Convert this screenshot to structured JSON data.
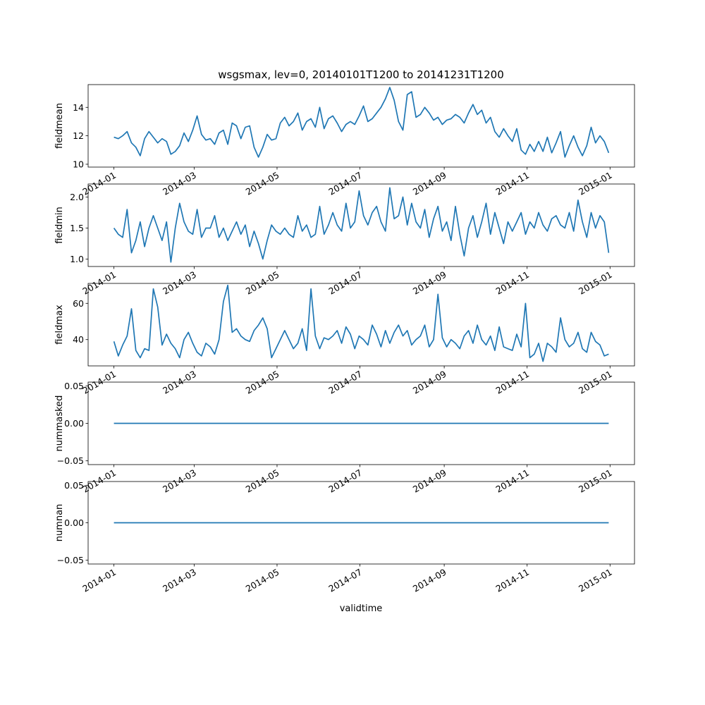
{
  "title": "wsgsmax, lev=0, 20140101T1200 to 20141231T1200",
  "xlabel": "validtime",
  "x_ticks": [
    "2014-01",
    "2014-03",
    "2014-05",
    "2014-07",
    "2014-09",
    "2014-11",
    "2015-01"
  ],
  "x_tick_dates": [
    "2014-01-01",
    "2014-03-01",
    "2014-05-01",
    "2014-07-01",
    "2014-09-01",
    "2014-11-01",
    "2015-01-01"
  ],
  "line_color": "#1f77b4",
  "chart_data": [
    {
      "type": "line",
      "ylabel": "fieldmean",
      "xlim": [
        "2013-12-13",
        "2015-01-19"
      ],
      "ylim": [
        9.8,
        15.6
      ],
      "y_ticks": [
        10,
        12,
        14
      ],
      "x_start": "2014-01-01",
      "x_end": "2014-12-31",
      "x_step_days": 4,
      "values": [
        11.9,
        11.8,
        12.0,
        12.3,
        11.5,
        11.2,
        10.6,
        11.8,
        12.3,
        11.9,
        11.5,
        11.8,
        11.6,
        10.7,
        10.9,
        11.3,
        12.2,
        11.6,
        12.4,
        13.4,
        12.1,
        11.7,
        11.8,
        11.4,
        12.2,
        12.4,
        11.4,
        12.9,
        12.7,
        11.8,
        12.6,
        12.7,
        11.2,
        10.5,
        11.2,
        12.1,
        11.7,
        11.8,
        12.9,
        13.3,
        12.7,
        13.0,
        13.6,
        12.4,
        13.0,
        13.2,
        12.6,
        14.0,
        12.5,
        13.2,
        13.4,
        12.9,
        12.3,
        12.8,
        13.0,
        12.8,
        13.4,
        14.1,
        13.0,
        13.2,
        13.6,
        14.0,
        14.6,
        15.4,
        14.5,
        13.0,
        12.4,
        14.9,
        15.1,
        13.3,
        13.5,
        14.0,
        13.6,
        13.1,
        13.3,
        12.8,
        13.1,
        13.2,
        13.5,
        13.3,
        12.9,
        13.6,
        14.2,
        13.5,
        13.8,
        12.9,
        13.3,
        12.3,
        11.9,
        12.5,
        12.0,
        11.6,
        12.5,
        11.0,
        10.7,
        11.4,
        10.9,
        11.6,
        10.9,
        11.9,
        10.8,
        11.5,
        12.3,
        10.5,
        11.3,
        12.0,
        11.2,
        10.6,
        11.3,
        12.6,
        11.5,
        12.0,
        11.6,
        10.8
      ]
    },
    {
      "type": "line",
      "ylabel": "fieldmin",
      "xlim": [
        "2013-12-13",
        "2015-01-19"
      ],
      "ylim": [
        0.88,
        2.21
      ],
      "y_ticks": [
        1.0,
        1.5,
        2.0
      ],
      "y_tick_labels": [
        "1.0",
        "1.5",
        "2.0"
      ],
      "x_start": "2014-01-01",
      "x_end": "2014-12-31",
      "x_step_days": 4,
      "values": [
        1.5,
        1.4,
        1.35,
        1.8,
        1.1,
        1.3,
        1.6,
        1.2,
        1.5,
        1.7,
        1.5,
        1.3,
        1.6,
        0.95,
        1.5,
        1.9,
        1.6,
        1.45,
        1.4,
        1.8,
        1.35,
        1.5,
        1.5,
        1.7,
        1.35,
        1.5,
        1.3,
        1.45,
        1.6,
        1.4,
        1.55,
        1.2,
        1.45,
        1.25,
        1.0,
        1.3,
        1.55,
        1.45,
        1.4,
        1.5,
        1.4,
        1.35,
        1.7,
        1.45,
        1.55,
        1.35,
        1.4,
        1.85,
        1.4,
        1.55,
        1.75,
        1.55,
        1.45,
        1.9,
        1.5,
        1.6,
        2.1,
        1.7,
        1.55,
        1.75,
        1.85,
        1.6,
        1.45,
        2.15,
        1.65,
        1.7,
        2.0,
        1.55,
        1.9,
        1.6,
        1.5,
        1.8,
        1.35,
        1.65,
        1.85,
        1.45,
        1.6,
        1.3,
        1.85,
        1.4,
        1.05,
        1.5,
        1.7,
        1.35,
        1.6,
        1.9,
        1.4,
        1.75,
        1.5,
        1.25,
        1.6,
        1.45,
        1.6,
        1.75,
        1.4,
        1.6,
        1.5,
        1.75,
        1.55,
        1.45,
        1.65,
        1.7,
        1.55,
        1.5,
        1.75,
        1.45,
        1.95,
        1.6,
        1.35,
        1.75,
        1.5,
        1.7,
        1.6,
        1.1
      ]
    },
    {
      "type": "line",
      "ylabel": "fieldmax",
      "xlim": [
        "2013-12-13",
        "2015-01-19"
      ],
      "ylim": [
        25.5,
        71.0
      ],
      "y_ticks": [
        40,
        60
      ],
      "x_start": "2014-01-01",
      "x_end": "2014-12-31",
      "x_step_days": 4,
      "values": [
        39,
        31,
        37,
        42,
        57,
        34,
        30,
        35,
        34,
        68,
        58,
        37,
        43,
        38,
        35,
        30,
        40,
        44,
        38,
        33,
        31,
        38,
        36,
        32,
        40,
        61,
        70,
        44,
        46,
        42,
        40,
        39,
        45,
        48,
        52,
        46,
        30,
        35,
        40,
        45,
        40,
        35,
        38,
        46,
        34,
        68,
        42,
        35,
        41,
        40,
        42,
        45,
        38,
        47,
        43,
        35,
        42,
        40,
        37,
        48,
        43,
        36,
        45,
        38,
        44,
        48,
        42,
        45,
        37,
        40,
        42,
        48,
        36,
        40,
        65,
        41,
        36,
        40,
        38,
        35,
        42,
        45,
        38,
        48,
        40,
        37,
        42,
        34,
        47,
        36,
        35,
        34,
        43,
        36,
        60,
        30,
        32,
        38,
        28,
        38,
        36,
        33,
        52,
        40,
        36,
        38,
        44,
        35,
        33,
        44,
        39,
        37,
        31,
        32
      ]
    },
    {
      "type": "line",
      "ylabel": "nummasked",
      "xlim": [
        "2013-12-13",
        "2015-01-19"
      ],
      "ylim": [
        -0.055,
        0.055
      ],
      "y_ticks": [
        -0.05,
        0.0,
        0.05
      ],
      "y_tick_labels": [
        "−0.05",
        "0.00",
        "0.05"
      ],
      "x": [
        "2014-01-01",
        "2014-12-31"
      ],
      "values": [
        0,
        0
      ]
    },
    {
      "type": "line",
      "ylabel": "numnan",
      "xlim": [
        "2013-12-13",
        "2015-01-19"
      ],
      "ylim": [
        -0.055,
        0.055
      ],
      "y_ticks": [
        -0.05,
        0.0,
        0.05
      ],
      "y_tick_labels": [
        "−0.05",
        "0.00",
        "0.05"
      ],
      "x": [
        "2014-01-01",
        "2014-12-31"
      ],
      "values": [
        0,
        0
      ]
    }
  ]
}
